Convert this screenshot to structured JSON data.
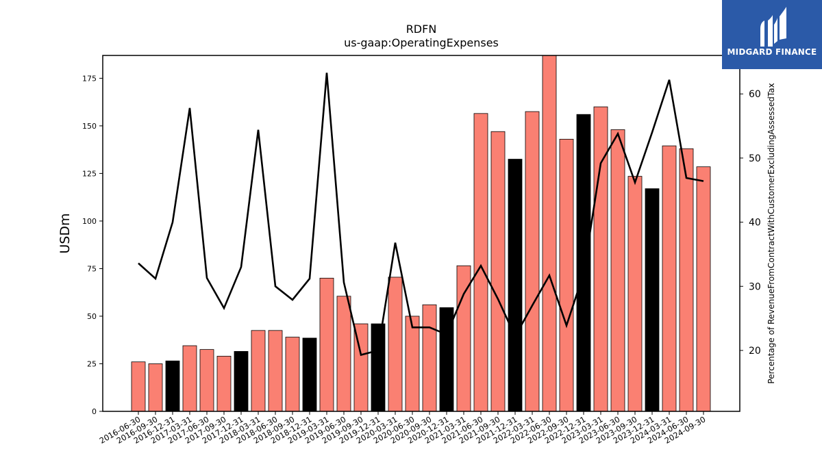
{
  "chart_data": {
    "type": "bar",
    "title": "RDFN",
    "subtitle": "us-gaap:OperatingExpenses",
    "ylabel": "USDm",
    "y2label": "Percentage of RevenueFromContractWithCustomerExcludingAssessedTax",
    "ylim": [
      0,
      187
    ],
    "y2lim": [
      10.5,
      66
    ],
    "yticks": [
      0,
      25,
      50,
      75,
      100,
      125,
      150,
      175
    ],
    "y2ticks": [
      20,
      30,
      40,
      50,
      60
    ],
    "categories": [
      "2016-06-30",
      "2016-09-30",
      "2016-12-31",
      "2017-03-31",
      "2017-06-30",
      "2017-09-30",
      "2017-12-31",
      "2018-03-31",
      "2018-06-30",
      "2018-09-30",
      "2018-12-31",
      "2019-03-31",
      "2019-06-30",
      "2019-09-30",
      "2019-12-31",
      "2020-03-31",
      "2020-06-30",
      "2020-09-30",
      "2020-12-31",
      "2021-03-31",
      "2021-06-30",
      "2021-09-30",
      "2021-12-31",
      "2022-03-31",
      "2022-06-30",
      "2022-09-30",
      "2022-12-31",
      "2023-03-31",
      "2023-06-30",
      "2023-09-30",
      "2023-12-31",
      "2024-03-31",
      "2024-06-30",
      "2024-09-30"
    ],
    "series": [
      {
        "type": "bar",
        "values": [
          26.0,
          25.0,
          26.5,
          34.5,
          32.5,
          29.0,
          31.5,
          42.5,
          42.5,
          39.0,
          38.5,
          70.0,
          60.5,
          46.0,
          46.0,
          70.5,
          50.0,
          56.0,
          54.5,
          76.5,
          156.5,
          147.0,
          132.5,
          157.5,
          188.0,
          143.0,
          156.0,
          160.0,
          148.0,
          123.5,
          117.0,
          139.5,
          138.0,
          128.5
        ],
        "highlight": [
          false,
          false,
          true,
          false,
          false,
          false,
          true,
          false,
          false,
          false,
          true,
          false,
          false,
          false,
          true,
          false,
          false,
          false,
          true,
          false,
          false,
          false,
          true,
          false,
          false,
          false,
          true,
          false,
          false,
          false,
          true,
          false,
          false,
          false
        ],
        "color": "#fa8072",
        "highlight_color": "#000000"
      },
      {
        "type": "line",
        "axis": "right",
        "values": [
          33.6,
          31.2,
          40.0,
          57.8,
          31.3,
          26.6,
          33.0,
          54.4,
          30.0,
          27.9,
          31.2,
          63.3,
          30.6,
          19.3,
          20.0,
          36.8,
          23.6,
          23.6,
          22.5,
          28.8,
          33.2,
          28.0,
          22.2,
          27.0,
          31.7,
          23.9,
          32.0,
          49.2,
          53.8,
          46.2,
          54.0,
          62.2,
          46.9,
          46.4
        ],
        "color": "#000000"
      }
    ]
  },
  "logo": {
    "text": "MIDGARD FINANCE",
    "bg_color": "#2b5aa8"
  }
}
